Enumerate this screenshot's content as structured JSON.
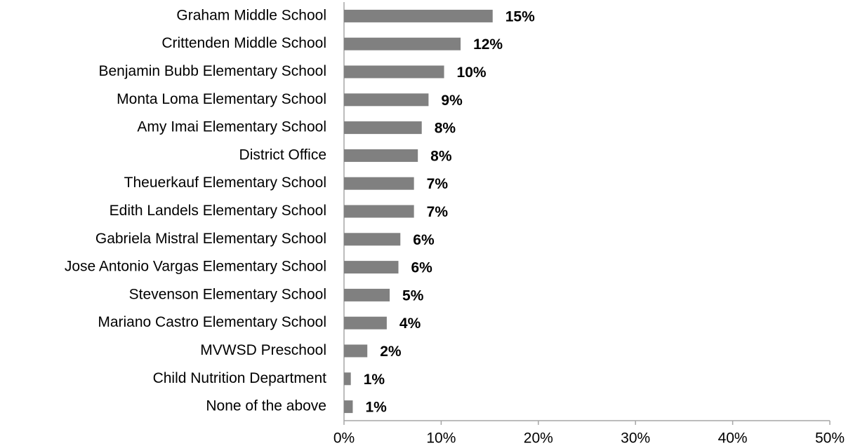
{
  "chart_data": {
    "type": "barh",
    "categories": [
      "Graham Middle School",
      "Crittenden Middle School",
      "Benjamin Bubb Elementary School",
      "Monta Loma Elementary School",
      "Amy Imai Elementary School",
      "District Office",
      "Theuerkauf Elementary School",
      "Edith Landels Elementary School",
      "Gabriela Mistral Elementary School",
      "Jose Antonio Vargas Elementary School",
      "Stevenson Elementary School",
      "Mariano Castro Elementary School",
      "MVWSD Preschool",
      "Child Nutrition Department",
      "None of the above"
    ],
    "values": [
      15.3,
      12.0,
      10.3,
      8.7,
      8.0,
      7.6,
      7.2,
      7.2,
      5.8,
      5.6,
      4.7,
      4.4,
      2.4,
      0.7,
      0.9
    ],
    "value_labels": [
      "15%",
      "12%",
      "10%",
      "9%",
      "8%",
      "8%",
      "7%",
      "7%",
      "6%",
      "6%",
      "5%",
      "4%",
      "2%",
      "1%",
      "1%"
    ],
    "color": "#808080",
    "xlim": [
      0,
      50
    ],
    "xticks": [
      {
        "value": 0,
        "label": "0%"
      },
      {
        "value": 10,
        "label": "10%"
      },
      {
        "value": 20,
        "label": "20%"
      },
      {
        "value": 30,
        "label": "30%"
      },
      {
        "value": 40,
        "label": "40%"
      },
      {
        "value": 50,
        "label": "50%"
      }
    ]
  }
}
